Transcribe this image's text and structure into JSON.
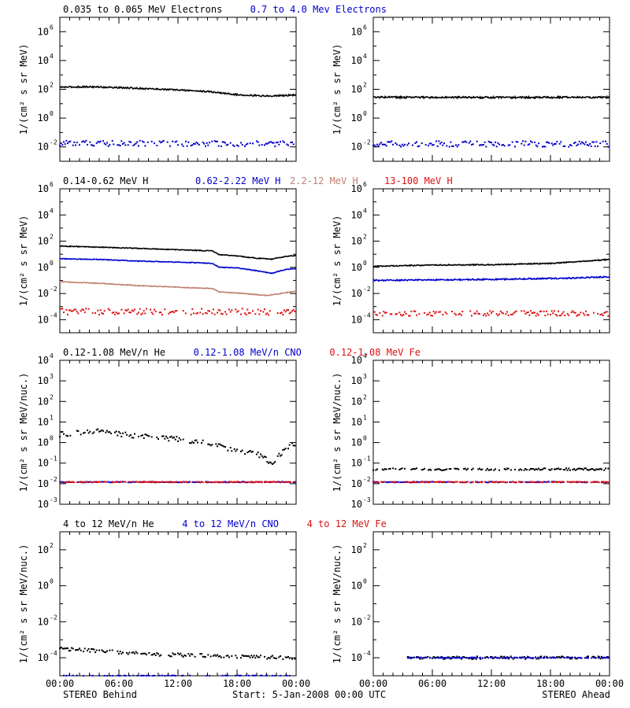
{
  "colors": {
    "black": "#000000",
    "blue": "#0000cc",
    "tan": "#c08070",
    "red": "#dd1111"
  },
  "footer": {
    "left": "STEREO Behind",
    "center": "Start:  5-Jan-2008 00:00 UTC",
    "right": "STEREO Ahead"
  },
  "chart_data": [
    {
      "type": "scatter",
      "row": 0,
      "titles": [
        {
          "text": "0.035 to 0.065 MeV Electrons",
          "color": "black"
        },
        {
          "text": "0.7 to 4.0 Mev Electrons",
          "color": "blue"
        }
      ],
      "ylabel": "1/(cm² s sr MeV)",
      "y_log": true,
      "ylim_exp": [
        -3,
        7
      ],
      "ytick_exps": [
        -2,
        0,
        2,
        4,
        6
      ],
      "ytick_style": "pow",
      "xlim_hours": [
        0,
        24
      ],
      "xticks": [
        "00:00",
        "06:00",
        "12:00",
        "18:00",
        "00:00"
      ],
      "panels": {
        "left": {
          "series": [
            {
              "name": "0.035 to 0.065 MeV Electrons",
              "color": "black",
              "style": "line",
              "points": [
                [
                  0,
                  140
                ],
                [
                  3,
                  150
                ],
                [
                  6,
                  130
                ],
                [
                  9,
                  110
                ],
                [
                  12,
                  90
                ],
                [
                  15,
                  70
                ],
                [
                  16.5,
                  55
                ],
                [
                  18,
                  42
                ],
                [
                  21,
                  34
                ],
                [
                  24,
                  40
                ]
              ],
              "noise": 0.05
            },
            {
              "name": "0.7 to 4.0 Mev Electrons",
              "color": "blue",
              "style": "dots",
              "points": [
                [
                  0,
                  0.017
                ],
                [
                  24,
                  0.017
                ]
              ],
              "noise": 0.2
            }
          ]
        },
        "right": {
          "series": [
            {
              "name": "0.035 to 0.065 MeV Electrons",
              "color": "black",
              "style": "line",
              "points": [
                [
                  0,
                  28
                ],
                [
                  12,
                  27
                ],
                [
                  24,
                  28
                ]
              ],
              "noise": 0.06
            },
            {
              "name": "0.7 to 4.0 Mev Electrons",
              "color": "blue",
              "style": "dots",
              "points": [
                [
                  0,
                  0.016
                ],
                [
                  24,
                  0.016
                ]
              ],
              "noise": 0.2
            }
          ]
        }
      }
    },
    {
      "type": "scatter",
      "row": 1,
      "titles": [
        {
          "text": "0.14-0.62 MeV H",
          "color": "black"
        },
        {
          "text": "0.62-2.22 MeV H",
          "color": "blue"
        },
        {
          "text": "2.2-12 MeV H",
          "color": "tan"
        },
        {
          "text": "13-100 MeV H",
          "color": "red"
        }
      ],
      "ylabel": "1/(cm² s sr MeV)",
      "y_log": true,
      "ylim_exp": [
        -5,
        6
      ],
      "ytick_exps": [
        -4,
        -2,
        0,
        2,
        4,
        6
      ],
      "ytick_style": "pow",
      "xlim_hours": [
        0,
        24
      ],
      "xticks": [
        "00:00",
        "06:00",
        "12:00",
        "18:00",
        "00:00"
      ],
      "panels": {
        "left": {
          "series": [
            {
              "name": "0.14-0.62 MeV H",
              "color": "black",
              "style": "line",
              "points": [
                [
                  0,
                  42
                ],
                [
                  4,
                  35
                ],
                [
                  8,
                  28
                ],
                [
                  12,
                  22
                ],
                [
                  15.5,
                  18
                ],
                [
                  16.2,
                  9
                ],
                [
                  18,
                  7.5
                ],
                [
                  20,
                  5
                ],
                [
                  21.5,
                  4.2
                ],
                [
                  23,
                  7
                ],
                [
                  24,
                  8
                ]
              ],
              "noise": 0.03
            },
            {
              "name": "0.62-2.22 MeV H",
              "color": "blue",
              "style": "line",
              "points": [
                [
                  0,
                  4.5
                ],
                [
                  4,
                  4
                ],
                [
                  8,
                  3
                ],
                [
                  12,
                  2.5
                ],
                [
                  15.5,
                  2
                ],
                [
                  16.2,
                  1
                ],
                [
                  18,
                  0.9
                ],
                [
                  20,
                  0.55
                ],
                [
                  21.5,
                  0.35
                ],
                [
                  23,
                  0.7
                ],
                [
                  24,
                  0.8
                ]
              ],
              "noise": 0.03
            },
            {
              "name": "2.2-12 MeV H",
              "color": "tan",
              "style": "line",
              "points": [
                [
                  0,
                  0.08
                ],
                [
                  4,
                  0.06
                ],
                [
                  8,
                  0.04
                ],
                [
                  12,
                  0.03
                ],
                [
                  15.5,
                  0.024
                ],
                [
                  16.2,
                  0.013
                ],
                [
                  18,
                  0.011
                ],
                [
                  21,
                  0.007
                ],
                [
                  24,
                  0.015
                ]
              ],
              "noise": 0.03
            },
            {
              "name": "13-100 MeV H",
              "color": "red",
              "style": "dots",
              "points": [
                [
                  0,
                  0.0004
                ],
                [
                  24,
                  0.0004
                ]
              ],
              "noise": 0.25
            }
          ]
        },
        "right": {
          "series": [
            {
              "name": "0.14-0.62 MeV H",
              "color": "black",
              "style": "line",
              "points": [
                [
                  0,
                  1.2
                ],
                [
                  6,
                  1.5
                ],
                [
                  12,
                  1.6
                ],
                [
                  18,
                  2
                ],
                [
                  24,
                  4
                ]
              ],
              "noise": 0.04
            },
            {
              "name": "0.62-2.22 MeV H",
              "color": "blue",
              "style": "line",
              "points": [
                [
                  0,
                  0.1
                ],
                [
                  12,
                  0.12
                ],
                [
                  20,
                  0.15
                ],
                [
                  24,
                  0.19
                ]
              ],
              "noise": 0.05
            },
            {
              "name": "13-100 MeV H",
              "color": "red",
              "style": "dots",
              "points": [
                [
                  0,
                  0.0003
                ],
                [
                  24,
                  0.0003
                ]
              ],
              "noise": 0.2
            }
          ]
        }
      }
    },
    {
      "type": "scatter",
      "row": 2,
      "titles": [
        {
          "text": "0.12-1.08 MeV/n He",
          "color": "black"
        },
        {
          "text": "0.12-1.08 MeV/n CNO",
          "color": "blue"
        },
        {
          "text": "0.12-1.08 MeV Fe",
          "color": "red"
        }
      ],
      "ylabel": "1/(cm² s sr MeV/nuc.)",
      "y_log": true,
      "ylim_exp": [
        -3,
        4
      ],
      "ytick_exps": [
        -3,
        -2,
        -1,
        0,
        1,
        2,
        3,
        4
      ],
      "ytick_style": "pow",
      "xlim_hours": [
        0,
        24
      ],
      "xticks": [
        "00:00",
        "06:00",
        "12:00",
        "18:00",
        "00:00"
      ],
      "panels": {
        "left": {
          "series": [
            {
              "name": "0.12-1.08 MeV/n He",
              "color": "black",
              "style": "dots",
              "points": [
                [
                  0,
                  2.5
                ],
                [
                  4,
                  3.5
                ],
                [
                  8,
                  2
                ],
                [
                  12,
                  1.5
                ],
                [
                  16,
                  0.8
                ],
                [
                  18,
                  0.35
                ],
                [
                  20,
                  0.3
                ],
                [
                  21.5,
                  0.1
                ],
                [
                  23,
                  0.5
                ],
                [
                  24,
                  1
                ]
              ],
              "noise": 0.12
            },
            {
              "name": "0.12-1.08 MeV/n CNO",
              "color": "blue",
              "style": "dots",
              "points": [
                [
                  0,
                  0.012
                ],
                [
                  24,
                  0.012
                ]
              ],
              "noise": 0.02
            },
            {
              "name": "0.12-1.08 MeV Fe",
              "color": "red",
              "style": "dots",
              "points": [
                [
                  0,
                  0.012
                ],
                [
                  24,
                  0.012
                ]
              ],
              "noise": 0.02
            }
          ]
        },
        "right": {
          "series": [
            {
              "name": "0.12-1.08 MeV/n He",
              "color": "black",
              "style": "dots",
              "points": [
                [
                  0,
                  0.05
                ],
                [
                  24,
                  0.05
                ]
              ],
              "noise": 0.05
            },
            {
              "name": "0.12-1.08 MeV/n CNO",
              "color": "blue",
              "style": "dots",
              "points": [
                [
                  0,
                  0.012
                ],
                [
                  24,
                  0.012
                ]
              ],
              "noise": 0.02
            },
            {
              "name": "0.12-1.08 MeV Fe",
              "color": "red",
              "style": "dots",
              "points": [
                [
                  0,
                  0.012
                ],
                [
                  24,
                  0.012
                ]
              ],
              "noise": 0.02
            }
          ]
        }
      }
    },
    {
      "type": "scatter",
      "row": 3,
      "titles": [
        {
          "text": "4 to 12 MeV/n He",
          "color": "black"
        },
        {
          "text": "4 to 12 MeV/n CNO",
          "color": "blue"
        },
        {
          "text": "4 to 12 MeV Fe",
          "color": "red"
        }
      ],
      "ylabel": "1/(cm² s sr MeV/nuc.)",
      "y_log": true,
      "ylim_exp": [
        -5,
        3
      ],
      "ytick_exps": [
        -4,
        -2,
        0,
        2
      ],
      "ytick_style": "pow",
      "xlim_hours": [
        0,
        24
      ],
      "xticks": [
        "00:00",
        "06:00",
        "12:00",
        "18:00",
        "00:00"
      ],
      "panels": {
        "left": {
          "series": [
            {
              "name": "4 to 12 MeV/n He",
              "color": "black",
              "style": "dots",
              "points": [
                [
                  0,
                  0.0003
                ],
                [
                  4,
                  0.00025
                ],
                [
                  10,
                  0.00015
                ],
                [
                  24,
                  0.0001
                ]
              ],
              "noise": 0.1
            },
            {
              "name": "4 to 12 MeV/n CNO",
              "color": "blue",
              "style": "dots",
              "points": [
                [
                  0,
                  1e-05
                ],
                [
                  24,
                  1e-05
                ]
              ],
              "noise": 0.02
            }
          ]
        },
        "right": {
          "series": [
            {
              "name": "4 to 12 MeV/n He",
              "color": "black",
              "style": "dots",
              "points": [
                [
                  3.5,
                  0.0001
                ],
                [
                  24,
                  0.0001
                ]
              ],
              "noise": 0.08
            },
            {
              "name": "4 to 12 MeV/n CNO",
              "color": "blue",
              "style": "dots",
              "points": [
                [
                  3.5,
                  0.0001
                ],
                [
                  24,
                  0.0001
                ]
              ],
              "noise": 0.02
            }
          ]
        }
      }
    }
  ]
}
